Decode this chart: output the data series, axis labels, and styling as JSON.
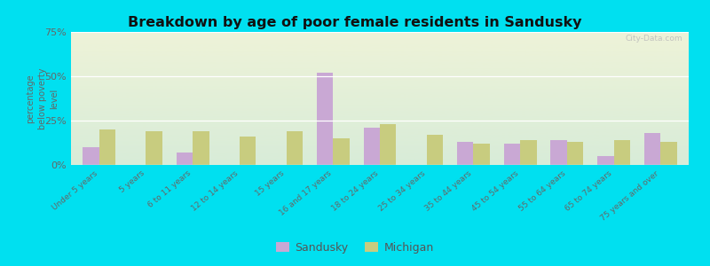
{
  "title": "Breakdown by age of poor female residents in Sandusky",
  "categories": [
    "Under 5 years",
    "5 years",
    "6 to 11 years",
    "12 to 14 years",
    "15 years",
    "16 and 17 years",
    "18 to 24 years",
    "25 to 34 years",
    "35 to 44 years",
    "45 to 54 years",
    "55 to 64 years",
    "65 to 74 years",
    "75 years and over"
  ],
  "sandusky": [
    10,
    0,
    7,
    0,
    0,
    52,
    21,
    0,
    13,
    12,
    14,
    5,
    18
  ],
  "michigan": [
    20,
    19,
    19,
    16,
    19,
    15,
    23,
    17,
    12,
    14,
    13,
    14,
    13
  ],
  "ylabel": "percentage\nbelow poverty\nlevel",
  "ylim": [
    0,
    75
  ],
  "yticks": [
    0,
    25,
    50,
    75
  ],
  "ytick_labels": [
    "0%",
    "25%",
    "50%",
    "75%"
  ],
  "sandusky_color": "#c9a8d4",
  "michigan_color": "#c8cc7f",
  "background_top": "#eef3d8",
  "background_bottom": "#d8ecd8",
  "outer_bg": "#00e0f0",
  "bar_width": 0.35,
  "legend_sandusky": "Sandusky",
  "legend_michigan": "Michigan",
  "watermark": "City-Data.com"
}
